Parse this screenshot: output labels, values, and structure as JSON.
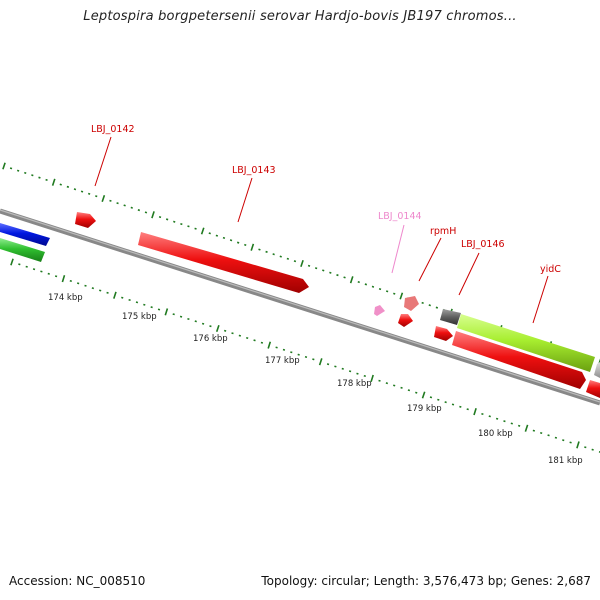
{
  "title": "Leptospira borgpetersenii serovar Hardjo-bovis JB197 chromos...",
  "footer": {
    "accession": "Accession: NC_008510",
    "summary": "Topology: circular; Length: 3,576,473 bp; Genes: 2,687"
  },
  "colors": {
    "gene_red": "#e00000",
    "gene_pink": "#f090c8",
    "gene_salmon": "#e87070",
    "gene_green": "#a8ee30",
    "gene_blue": "#0018e0",
    "gene_cds_green": "#30c030",
    "gene_gray": "#606060",
    "tick_green": "#207a20",
    "label_red": "#cc0000",
    "label_pink": "#ee88cc",
    "backbone": "#777777"
  },
  "ruler": [
    "174 kbp",
    "175 kbp",
    "176 kbp",
    "177 kbp",
    "178 kbp",
    "179 kbp",
    "180 kbp",
    "181 kbp"
  ],
  "genes": [
    {
      "label": "LBJ_0142",
      "color": "red",
      "strand": "+"
    },
    {
      "label": "LBJ_0143",
      "color": "red",
      "strand": "+"
    },
    {
      "label": "LBJ_0144",
      "color": "pink",
      "strand": "+"
    },
    {
      "label": "rpmH",
      "color": "salmon",
      "strand": "+"
    },
    {
      "label": "LBJ_0146",
      "color": "red",
      "strand": "-"
    },
    {
      "label": "yidC",
      "color": "green",
      "strand": "+"
    }
  ]
}
